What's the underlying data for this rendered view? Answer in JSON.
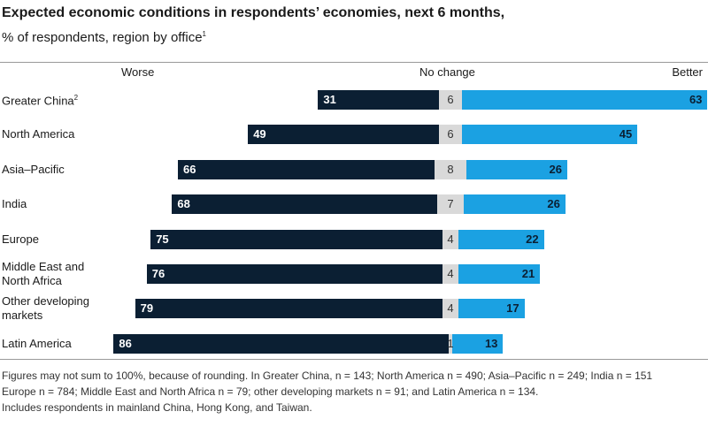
{
  "chart_data": {
    "type": "diverging_bar",
    "title": "Expected economic conditions in respondents’ economies, next 6 months,",
    "subtitle": "% of respondents, region by office",
    "subtitle_note": "1",
    "categories": [
      "Greater China",
      "North America",
      "Asia–Pacific",
      "India",
      "Europe",
      "Middle East and\nNorth Africa",
      "Other developing\nmarkets",
      "Latin America"
    ],
    "category_notes": [
      "2",
      null,
      null,
      null,
      null,
      null,
      null,
      null
    ],
    "series": [
      {
        "name": "Worse",
        "color": "#0b1f33",
        "values": [
          31,
          49,
          66,
          68,
          75,
          76,
          79,
          86
        ]
      },
      {
        "name": "No change",
        "color": "#d9d9d9",
        "values": [
          6,
          6,
          8,
          7,
          4,
          4,
          4,
          1
        ]
      },
      {
        "name": "Better",
        "color": "#1ba1e2",
        "values": [
          63,
          45,
          26,
          26,
          22,
          21,
          17,
          13
        ]
      }
    ],
    "footnotes": [
      "Figures may not sum to 100%, because of rounding. In Greater China, n = 143; North America n = 490; Asia–Pacific n = 249;  India n = 151",
      "Europe n = 784; Middle East and North Africa n = 79; other developing markets n = 91; and Latin America n = 134.",
      "Includes respondents in mainland China, Hong Kong, and Taiwan."
    ]
  }
}
